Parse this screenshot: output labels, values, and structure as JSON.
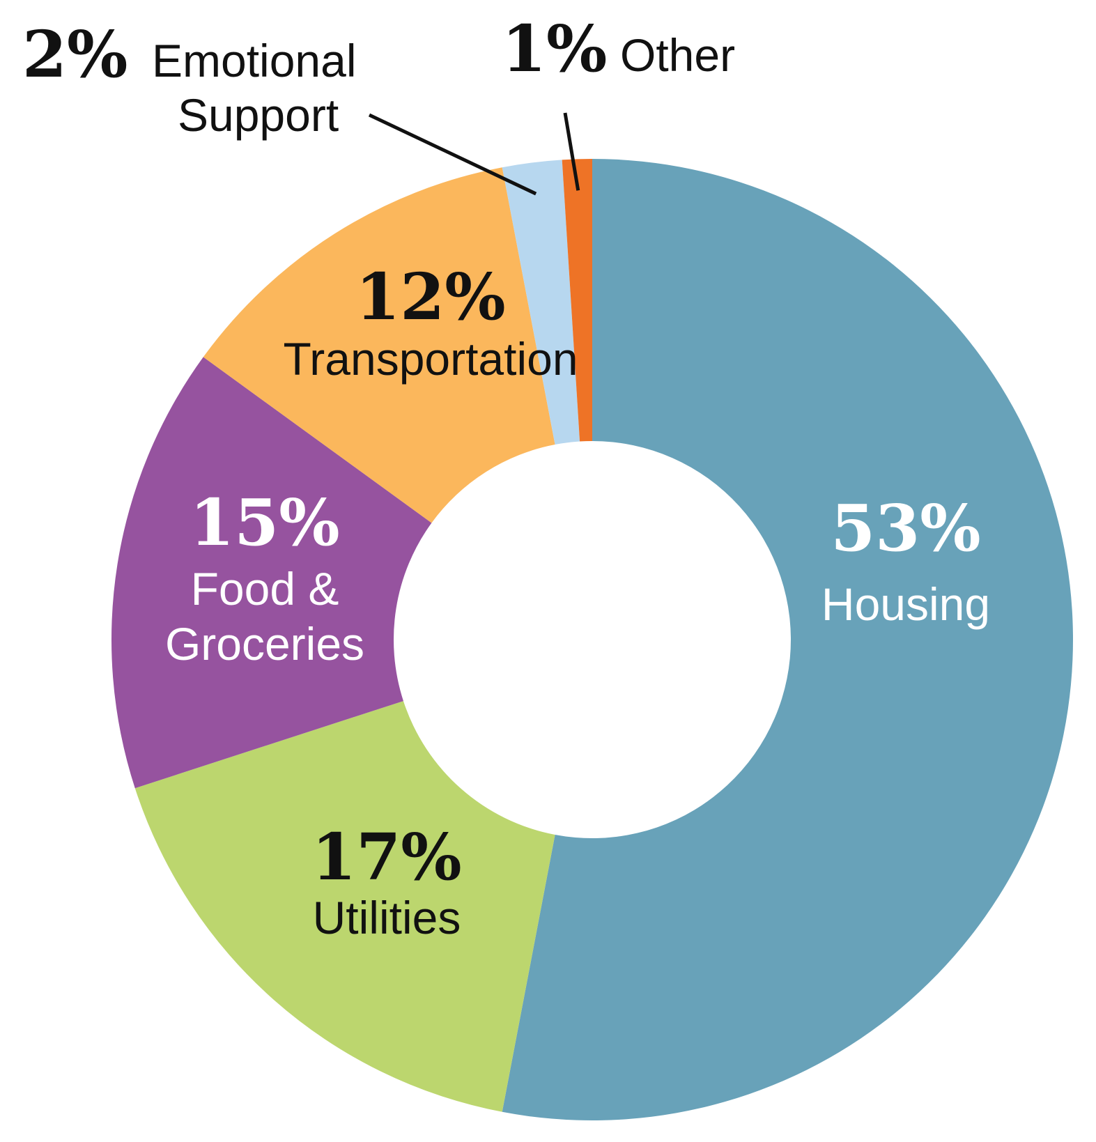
{
  "chart_data": {
    "type": "pie",
    "donut": true,
    "start": "12 o'clock",
    "direction": "clockwise",
    "slices": [
      {
        "label": "Housing",
        "value": 53,
        "percent_label": "53%",
        "color": "#68a2b9",
        "text_color": "#ffffff"
      },
      {
        "label": "Utilities",
        "value": 17,
        "percent_label": "17%",
        "color": "#bcd66e",
        "text_color": "#111111"
      },
      {
        "label": "Food & Groceries",
        "value": 15,
        "percent_label": "15%",
        "color": "#96539f",
        "text_color": "#ffffff"
      },
      {
        "label": "Transportation",
        "value": 12,
        "percent_label": "12%",
        "color": "#fbb75c",
        "text_color": "#111111"
      },
      {
        "label": "Emotional Support",
        "value": 2,
        "percent_label": "2%",
        "color": "#b7d7ef",
        "text_color": "#111111"
      },
      {
        "label": "Other",
        "value": 1,
        "percent_label": "1%",
        "color": "#ee7326",
        "text_color": "#111111"
      }
    ],
    "label_lines": {
      "Food & Groceries": [
        "Food &",
        "Groceries"
      ],
      "Emotional Support": [
        "Emotional",
        "Support"
      ]
    }
  }
}
